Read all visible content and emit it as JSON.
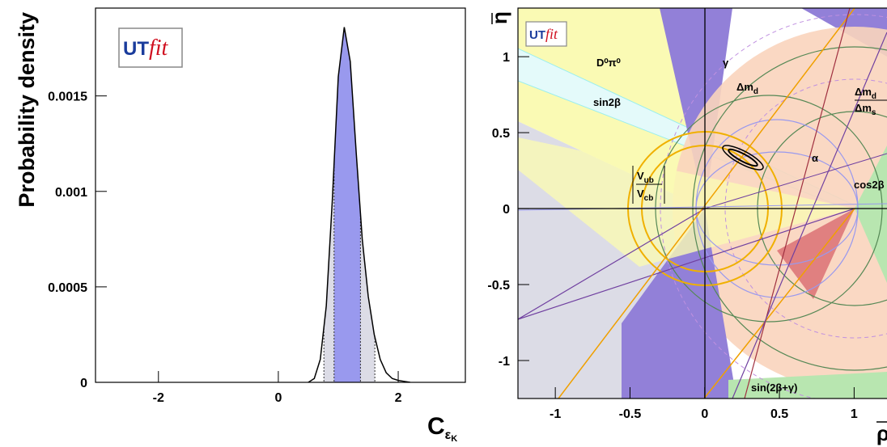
{
  "chart_data": [
    {
      "type": "density",
      "logo": {
        "prefix": "UT",
        "suffix": "fit"
      },
      "ylabel": "Probability density",
      "xlabel": {
        "text": "C",
        "sub": "ε",
        "subsub": "K"
      },
      "x": [
        0.5,
        0.6,
        0.7,
        0.8,
        0.9,
        1.0,
        1.1,
        1.2,
        1.3,
        1.4,
        1.5,
        1.6,
        1.7,
        1.8,
        1.9,
        2.0,
        2.1,
        2.2
      ],
      "values": [
        0,
        2e-05,
        0.00012,
        0.0004,
        0.00095,
        0.0016,
        0.00186,
        0.00168,
        0.0012,
        0.00075,
        0.00045,
        0.00025,
        0.00012,
        5e-05,
        2e-05,
        1e-05,
        5e-06,
        0
      ],
      "color": "#000000",
      "intervals": [
        {
          "range": [
            0.76,
            1.61
          ],
          "color": "#dcdce6"
        },
        {
          "range": [
            0.93,
            1.37
          ],
          "color": "#9999ee"
        }
      ],
      "xlim": [
        -3.05,
        3.12
      ],
      "ylim": [
        0,
        0.00196
      ],
      "xticks": [
        -2,
        0,
        2
      ],
      "yticks": [
        0,
        0.0005,
        0.001,
        0.0015
      ]
    },
    {
      "type": "constraints",
      "logo": {
        "prefix": "UT",
        "suffix": "fit"
      },
      "xlabel": "ρ",
      "ylabel": "η",
      "labels": {
        "d0pi0": "D⁰π⁰",
        "gamma": "γ",
        "dmd": {
          "text": "Δm",
          "sub": "d"
        },
        "ratio": {
          "numerator": {
            "text": "Δm",
            "sub": "d"
          },
          "denominator": {
            "text": "Δm",
            "sub": "s"
          }
        },
        "sin2beta": "sin2β",
        "alpha": "α",
        "vubvcb": {
          "numerator": {
            "text": "V",
            "sub": "ub"
          },
          "denominator": {
            "text": "V",
            "sub": "cb"
          }
        },
        "cos2beta": "cos2β",
        "sin2bg": "sin(2β+γ)"
      },
      "xlim": [
        -1.25,
        1.22
      ],
      "ylim": [
        -1.25,
        1.32
      ],
      "xticks": [
        -1,
        -0.5,
        0,
        0.5,
        1
      ],
      "yticks": [
        -1,
        -0.5,
        0,
        0.5,
        1
      ]
    }
  ]
}
